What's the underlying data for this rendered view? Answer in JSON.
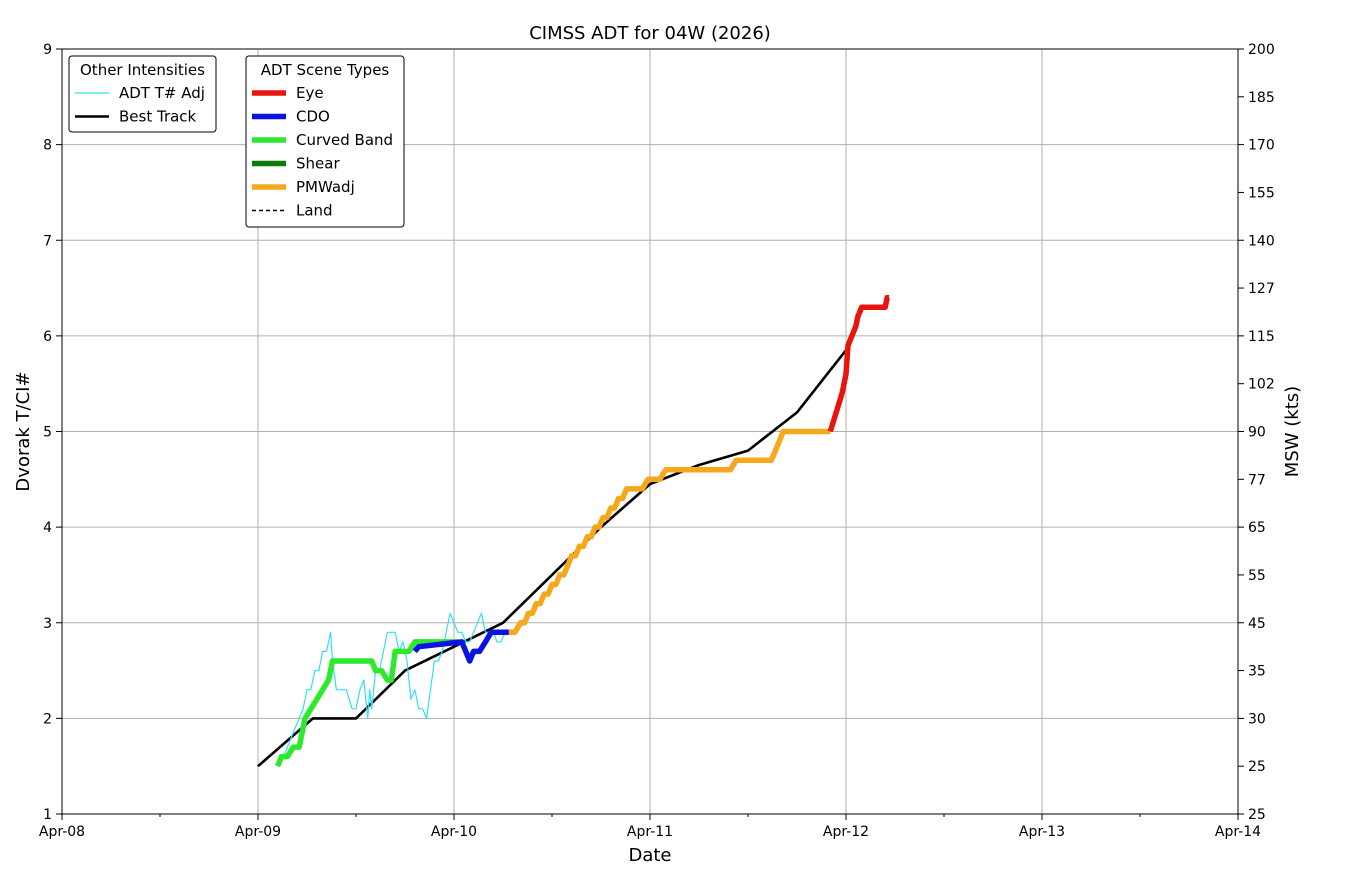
{
  "chart_data": {
    "type": "line",
    "title": "CIMSS ADT for 04W (2026)",
    "xlabel": "Date",
    "ylabel": "Dvorak T/CI#",
    "ylabel_right": "MSW (kts)",
    "x_unit": "days",
    "x_tick_labels": [
      "Apr-08",
      "Apr-09",
      "Apr-10",
      "Apr-11",
      "Apr-12",
      "Apr-13",
      "Apr-14"
    ],
    "xlim": [
      0,
      6
    ],
    "ylim": [
      1,
      9
    ],
    "y_ticks": [
      1,
      2,
      3,
      4,
      5,
      6,
      7,
      8,
      9
    ],
    "y_right_ticks": [
      {
        "ci": 1.0,
        "label": "25"
      },
      {
        "ci": 1.5,
        "label": "25"
      },
      {
        "ci": 2.0,
        "label": "30"
      },
      {
        "ci": 2.5,
        "label": "35"
      },
      {
        "ci": 3.0,
        "label": "45"
      },
      {
        "ci": 3.5,
        "label": "55"
      },
      {
        "ci": 4.0,
        "label": "65"
      },
      {
        "ci": 4.5,
        "label": "77"
      },
      {
        "ci": 5.0,
        "label": "90"
      },
      {
        "ci": 5.5,
        "label": "102"
      },
      {
        "ci": 6.0,
        "label": "115"
      },
      {
        "ci": 6.5,
        "label": "127"
      },
      {
        "ci": 7.0,
        "label": "140"
      },
      {
        "ci": 7.5,
        "label": "155"
      },
      {
        "ci": 8.0,
        "label": "170"
      },
      {
        "ci": 8.5,
        "label": "185"
      },
      {
        "ci": 9.0,
        "label": "200"
      }
    ],
    "grid": true,
    "legends": [
      {
        "title": "Other Intensities",
        "placement": "top-left",
        "entries": [
          {
            "label": "ADT T# Adj",
            "color": "#33e0f0",
            "style": "thin"
          },
          {
            "label": "Best Track",
            "color": "#000000",
            "style": "solid"
          }
        ]
      },
      {
        "title": "ADT Scene Types",
        "placement": "top-left",
        "entries": [
          {
            "label": "Eye",
            "color": "#e8150f",
            "style": "thick"
          },
          {
            "label": "CDO",
            "color": "#0a14e0",
            "style": "thick"
          },
          {
            "label": "Curved Band",
            "color": "#2de82d",
            "style": "thick"
          },
          {
            "label": "Shear",
            "color": "#0d7a0d",
            "style": "thick"
          },
          {
            "label": "PMWadj",
            "color": "#f5a81c",
            "style": "thick"
          },
          {
            "label": "Land",
            "color": "#000000",
            "style": "dashed"
          }
        ]
      }
    ],
    "series": [
      {
        "name": "Best Track",
        "color": "#000000",
        "x": [
          1.0,
          1.28,
          1.5,
          1.75,
          2.0,
          2.25,
          2.5,
          2.75,
          3.0,
          3.25,
          3.5,
          3.75,
          4.0
        ],
        "y": [
          1.5,
          2.0,
          2.0,
          2.5,
          2.75,
          3.0,
          3.5,
          4.0,
          4.45,
          4.65,
          4.8,
          5.2,
          5.85
        ]
      },
      {
        "name": "ADT T# Adj",
        "color": "#33e0f0",
        "x": [
          1.1,
          1.13,
          1.15,
          1.17,
          1.19,
          1.21,
          1.23,
          1.25,
          1.27,
          1.29,
          1.31,
          1.33,
          1.35,
          1.37,
          1.38,
          1.4,
          1.42,
          1.45,
          1.48,
          1.5,
          1.52,
          1.54,
          1.56,
          1.57,
          1.58,
          1.6,
          1.62,
          1.64,
          1.66,
          1.68,
          1.7,
          1.72,
          1.74,
          1.76,
          1.78,
          1.8,
          1.81,
          1.82,
          1.84,
          1.86,
          1.88,
          1.9,
          1.92,
          1.94,
          1.96,
          1.98,
          2.0,
          2.02,
          2.04,
          2.06,
          2.08,
          2.1,
          2.12,
          2.14,
          2.16,
          2.18,
          2.2,
          2.22,
          2.24,
          2.26,
          2.28,
          2.3,
          2.32
        ],
        "y": [
          1.5,
          1.6,
          1.7,
          1.8,
          1.9,
          2.0,
          2.1,
          2.3,
          2.3,
          2.5,
          2.5,
          2.7,
          2.7,
          2.9,
          2.6,
          2.3,
          2.3,
          2.3,
          2.1,
          2.1,
          2.3,
          2.4,
          2.0,
          2.3,
          2.1,
          2.5,
          2.5,
          2.7,
          2.9,
          2.9,
          2.9,
          2.7,
          2.8,
          2.6,
          2.2,
          2.3,
          2.2,
          2.1,
          2.1,
          2.0,
          2.3,
          2.6,
          2.6,
          2.7,
          2.9,
          3.1,
          3.0,
          2.9,
          2.9,
          2.8,
          2.8,
          2.9,
          3.0,
          3.1,
          2.9,
          2.9,
          2.9,
          2.8,
          2.8,
          2.9,
          2.9,
          2.9,
          2.9
        ]
      },
      {
        "name": "Curved Band",
        "color": "#2de82d",
        "x": [
          1.1,
          1.12,
          1.15,
          1.18,
          1.21,
          1.24,
          1.27,
          1.3,
          1.33,
          1.36,
          1.38,
          1.42,
          1.46,
          1.5,
          1.54,
          1.58,
          1.6,
          1.63,
          1.66,
          1.68,
          1.7,
          1.73,
          1.77,
          1.8,
          1.82,
          1.86,
          1.9,
          1.94,
          1.98,
          2.02
        ],
        "y": [
          1.5,
          1.6,
          1.6,
          1.7,
          1.7,
          2.0,
          2.1,
          2.2,
          2.3,
          2.4,
          2.6,
          2.6,
          2.6,
          2.6,
          2.6,
          2.6,
          2.5,
          2.5,
          2.4,
          2.4,
          2.7,
          2.7,
          2.7,
          2.8,
          2.8,
          2.8,
          2.8,
          2.8,
          2.8,
          2.8
        ]
      },
      {
        "name": "CDO",
        "color": "#0a14e0",
        "x": [
          1.8,
          1.82,
          2.04,
          2.06,
          2.08,
          2.1,
          2.13,
          2.16,
          2.19,
          2.22,
          2.25,
          2.28
        ],
        "y": [
          2.7,
          2.75,
          2.8,
          2.7,
          2.6,
          2.7,
          2.7,
          2.8,
          2.9,
          2.9,
          2.9,
          2.9
        ]
      },
      {
        "name": "PMWadj",
        "color": "#f5a81c",
        "x": [
          2.28,
          2.31,
          2.34,
          2.36,
          2.38,
          2.4,
          2.42,
          2.44,
          2.46,
          2.48,
          2.5,
          2.52,
          2.54,
          2.56,
          2.58,
          2.6,
          2.62,
          2.64,
          2.66,
          2.68,
          2.7,
          2.72,
          2.74,
          2.76,
          2.78,
          2.8,
          2.82,
          2.84,
          2.86,
          2.88,
          2.9,
          2.93,
          2.96,
          2.99,
          3.02,
          3.05,
          3.08,
          3.12,
          3.16,
          3.2,
          3.25,
          3.3,
          3.35,
          3.38,
          3.41,
          3.44,
          3.48,
          3.52,
          3.56,
          3.6,
          3.62,
          3.64,
          3.66,
          3.68,
          3.72,
          3.76,
          3.8,
          3.84,
          3.88,
          3.92
        ],
        "y": [
          2.9,
          2.9,
          3.0,
          3.0,
          3.1,
          3.1,
          3.2,
          3.2,
          3.3,
          3.3,
          3.4,
          3.4,
          3.5,
          3.5,
          3.6,
          3.7,
          3.7,
          3.8,
          3.8,
          3.9,
          3.9,
          4.0,
          4.0,
          4.1,
          4.1,
          4.2,
          4.2,
          4.3,
          4.3,
          4.4,
          4.4,
          4.4,
          4.4,
          4.5,
          4.5,
          4.5,
          4.6,
          4.6,
          4.6,
          4.6,
          4.6,
          4.6,
          4.6,
          4.6,
          4.6,
          4.7,
          4.7,
          4.7,
          4.7,
          4.7,
          4.7,
          4.8,
          4.9,
          5.0,
          5.0,
          5.0,
          5.0,
          5.0,
          5.0,
          5.0
        ]
      },
      {
        "name": "Eye",
        "color": "#e8150f",
        "x": [
          3.92,
          3.95,
          3.98,
          4.0,
          4.01,
          4.03,
          4.05,
          4.06,
          4.08,
          4.1,
          4.12,
          4.15,
          4.18,
          4.2,
          4.21,
          4.22
        ],
        "y": [
          5.0,
          5.2,
          5.4,
          5.6,
          5.9,
          6.0,
          6.1,
          6.2,
          6.3,
          6.3,
          6.3,
          6.3,
          6.3,
          6.3,
          6.4,
          6.4
        ]
      }
    ]
  }
}
